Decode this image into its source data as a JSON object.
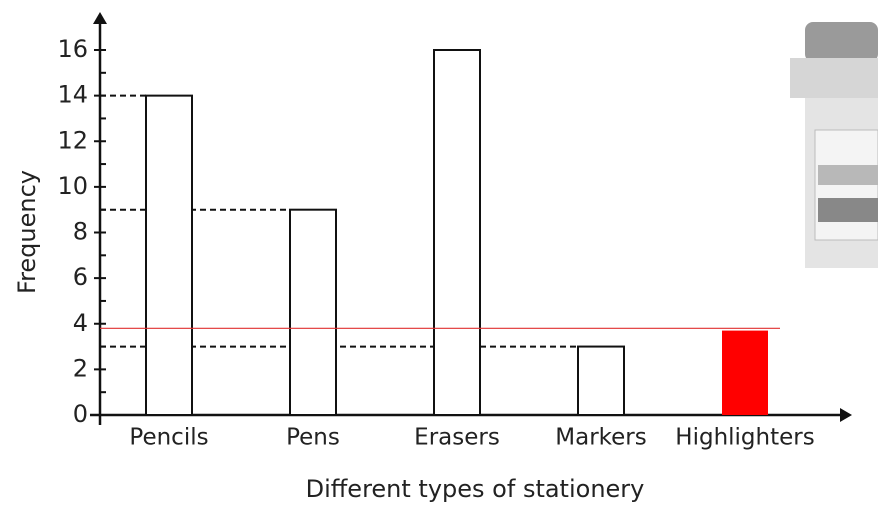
{
  "chart_data": {
    "type": "bar",
    "categories": [
      "Pencils",
      "Pens",
      "Erasers",
      "Markers",
      "Highlighters"
    ],
    "values": [
      14,
      9,
      16,
      3,
      3.7
    ],
    "colors": [
      "#ffffff",
      "#ffffff",
      "#ffffff",
      "#ffffff",
      "#ff0000"
    ],
    "ylim": [
      0,
      16
    ],
    "yticks": [
      0,
      2,
      4,
      6,
      8,
      10,
      12,
      14,
      16
    ],
    "minor_yticks": [
      1,
      3,
      5,
      7,
      9,
      11,
      13,
      15
    ],
    "guide_lines": [
      14,
      9,
      3
    ],
    "reference_line": {
      "value": 3.8,
      "color": "#e03030"
    },
    "x_label": "Different types of stationery",
    "y_label": "Frequency"
  }
}
